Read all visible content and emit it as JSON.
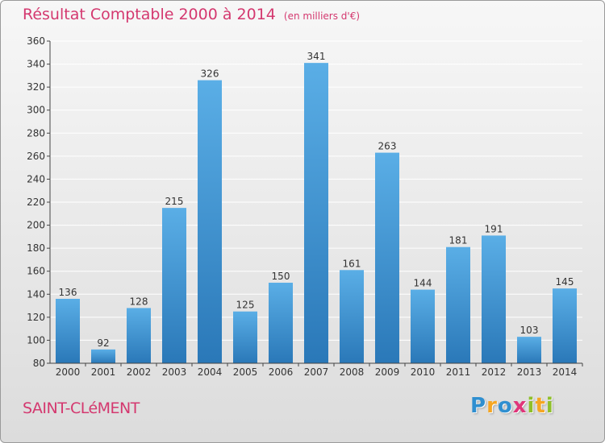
{
  "title": {
    "main": "Résultat Comptable 2000 à 2014",
    "unit": "(en milliers d'€)"
  },
  "commune": "SAINT-CLéMENT",
  "logo": [
    "P",
    "r",
    "o",
    "x",
    "i",
    "t",
    "i"
  ],
  "colors": {
    "title": "#d4386f",
    "bar_light": "#5aaee6",
    "bar_dark": "#2a78b8",
    "grid": "#ffffff",
    "axis": "#444444"
  },
  "chart_data": {
    "type": "bar",
    "title": "Résultat Comptable 2000 à 2014 (en milliers d'€)",
    "xlabel": "",
    "ylabel": "",
    "categories": [
      "2000",
      "2001",
      "2002",
      "2003",
      "2004",
      "2005",
      "2006",
      "2007",
      "2008",
      "2009",
      "2010",
      "2011",
      "2012",
      "2013",
      "2014"
    ],
    "values": [
      136,
      92,
      128,
      215,
      326,
      125,
      150,
      341,
      161,
      263,
      144,
      181,
      191,
      103,
      145
    ],
    "ylim": [
      80,
      360
    ],
    "yticks": [
      80,
      100,
      120,
      140,
      160,
      180,
      200,
      220,
      240,
      260,
      280,
      300,
      320,
      340,
      360
    ],
    "grid": true
  }
}
